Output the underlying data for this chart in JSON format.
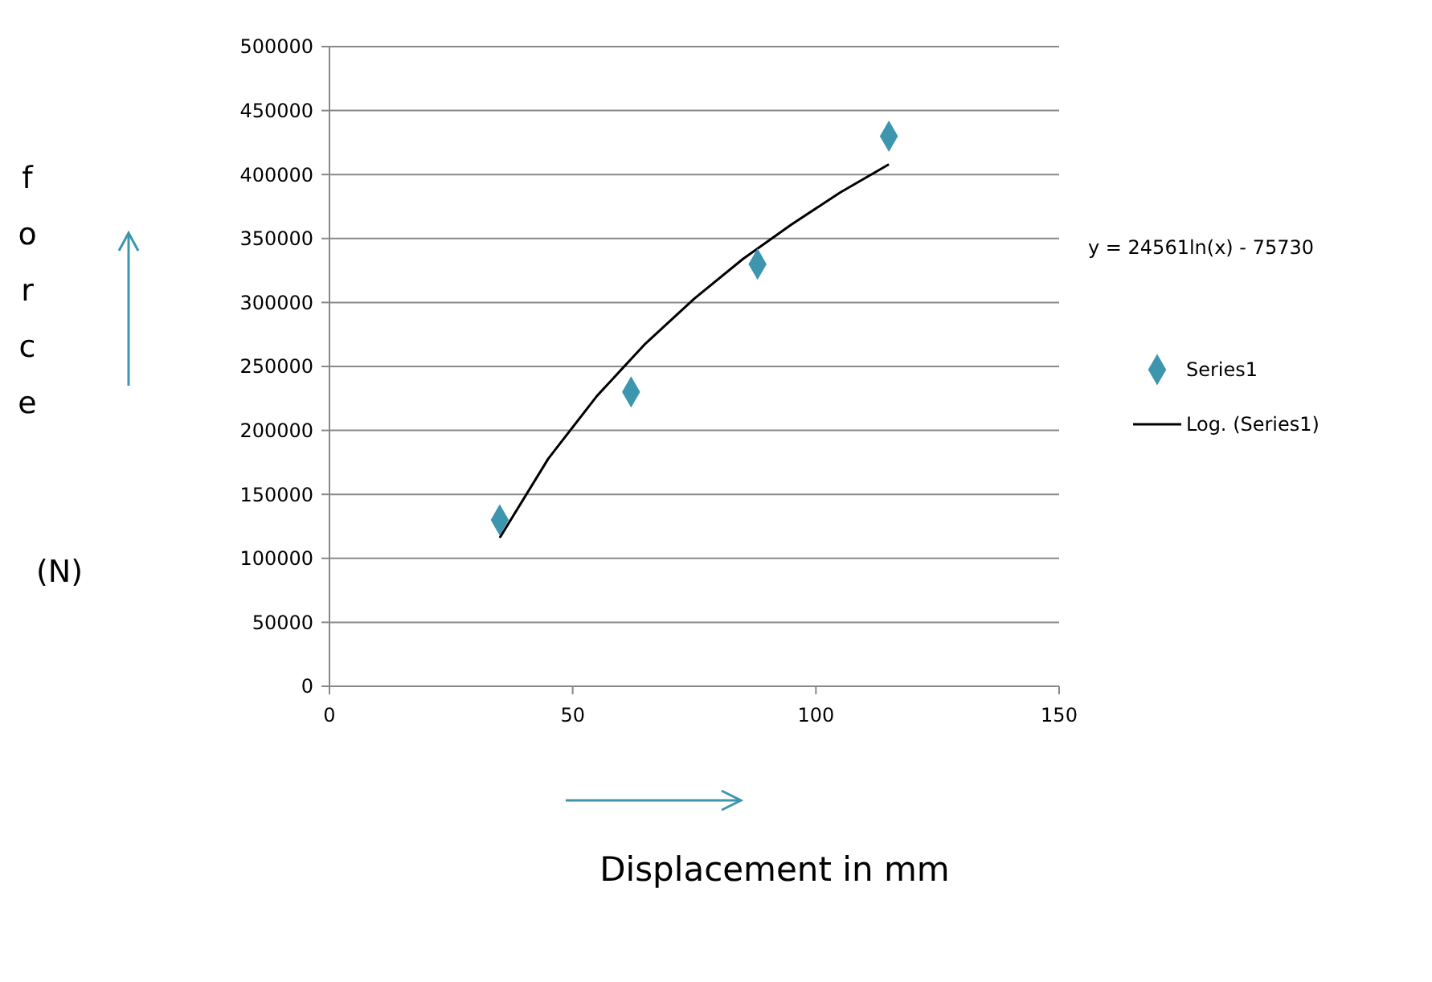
{
  "chart_data": {
    "type": "scatter",
    "xlabel": "Displacement in mm",
    "ylabel": "force (N)",
    "xlim": [
      0,
      150
    ],
    "xticks": [
      0,
      50,
      100,
      150
    ],
    "ylim": [
      0,
      500000
    ],
    "yticks": [
      0,
      50000,
      100000,
      150000,
      200000,
      250000,
      300000,
      350000,
      400000,
      450000,
      500000
    ],
    "grid": "y",
    "legend": "right",
    "annotations": [
      "y = 24561ln(x) - 75730"
    ],
    "series": [
      {
        "name": "Series1",
        "type": "scatter",
        "marker": "diamond",
        "color": "#3d96ae",
        "x": [
          35,
          62,
          88,
          115
        ],
        "values": [
          130000,
          230000,
          330000,
          430000
        ]
      },
      {
        "name": "Log. (Series1)",
        "type": "line",
        "color": "#000000",
        "marker": "none",
        "x": [
          35,
          45,
          55,
          65,
          75,
          85,
          95,
          105,
          115
        ],
        "values": [
          116000,
          178000,
          227000,
          268000,
          303000,
          334000,
          361000,
          386000,
          408000
        ]
      }
    ]
  }
}
